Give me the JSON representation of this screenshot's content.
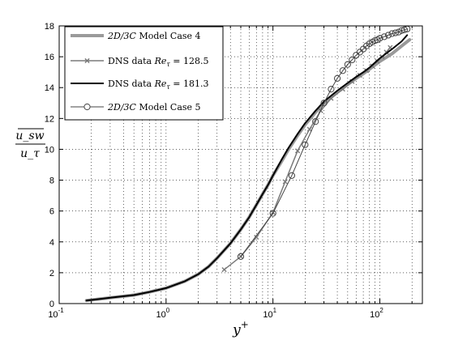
{
  "chart_data": {
    "type": "line",
    "xscale": "log",
    "xlim": [
      0.1,
      250
    ],
    "ylim": [
      0,
      18
    ],
    "grid": true,
    "legend_position": "top-left",
    "xlabel": "y",
    "xlabel_sup": "+",
    "ylabel_num": "u_sw",
    "ylabel_den": "u_τ",
    "x_ticks": [
      {
        "base": "10",
        "exp": "-1",
        "value": 0.1
      },
      {
        "base": "10",
        "exp": "0",
        "value": 1
      },
      {
        "base": "10",
        "exp": "1",
        "value": 10
      },
      {
        "base": "10",
        "exp": "2",
        "value": 100
      }
    ],
    "y_ticks": [
      0,
      2,
      4,
      6,
      8,
      10,
      12,
      14,
      16,
      18
    ],
    "series": [
      {
        "name": "2D/3C Model Case 4",
        "color": "#9a9a9a",
        "width": 4,
        "marker": "none",
        "x": [
          0.18,
          0.3,
          0.5,
          0.7,
          1,
          1.5,
          2,
          2.5,
          3,
          4,
          5,
          6,
          7,
          8,
          9,
          10,
          12,
          14,
          17,
          20,
          25,
          30,
          40,
          50,
          60,
          70,
          80,
          100,
          130,
          160,
          190
        ],
        "y": [
          0.2,
          0.38,
          0.55,
          0.75,
          1.0,
          1.45,
          1.9,
          2.4,
          2.95,
          3.9,
          4.8,
          5.6,
          6.4,
          7.1,
          7.7,
          8.3,
          9.2,
          10.0,
          10.9,
          11.6,
          12.4,
          13.0,
          13.7,
          14.2,
          14.6,
          14.9,
          15.2,
          15.7,
          16.2,
          16.7,
          17.1
        ]
      },
      {
        "name": "DNS data Re_τ = 128.5",
        "color": "#7a7a7a",
        "width": 1.5,
        "marker": "x",
        "x": [
          3.5,
          5,
          7,
          10,
          13,
          17,
          22,
          28,
          35,
          45,
          55,
          65,
          75,
          85,
          95,
          105,
          115,
          125
        ],
        "y": [
          2.2,
          3.05,
          4.3,
          5.9,
          7.9,
          9.9,
          11.3,
          12.5,
          13.3,
          13.9,
          14.4,
          14.8,
          15.1,
          15.4,
          15.7,
          16.0,
          16.3,
          16.6
        ]
      },
      {
        "name": "DNS data Re_τ = 181.3",
        "color": "#000000",
        "width": 2,
        "marker": "none",
        "x": [
          0.18,
          0.3,
          0.5,
          0.7,
          1,
          1.5,
          2,
          2.5,
          3,
          4,
          5,
          6,
          7,
          8,
          9,
          10,
          12,
          14,
          17,
          20,
          25,
          30,
          40,
          50,
          60,
          70,
          80,
          100,
          130,
          160,
          180
        ],
        "y": [
          0.2,
          0.38,
          0.55,
          0.75,
          1.0,
          1.45,
          1.9,
          2.4,
          2.95,
          3.9,
          4.8,
          5.6,
          6.4,
          7.1,
          7.7,
          8.3,
          9.3,
          10.1,
          11.0,
          11.7,
          12.5,
          13.1,
          13.8,
          14.3,
          14.7,
          15.0,
          15.3,
          15.9,
          16.5,
          17.0,
          17.4
        ]
      },
      {
        "name": "2D/3C Model Case 5",
        "color": "#444444",
        "width": 1,
        "marker": "circle",
        "x": [
          5,
          10,
          15,
          20,
          25,
          30,
          35,
          40,
          45,
          50,
          55,
          60,
          65,
          70,
          75,
          80,
          85,
          90,
          95,
          100,
          110,
          120,
          130,
          140,
          150,
          160,
          170,
          180
        ],
        "y": [
          3.05,
          5.85,
          8.3,
          10.3,
          11.8,
          13.0,
          13.9,
          14.6,
          15.1,
          15.5,
          15.8,
          16.1,
          16.3,
          16.5,
          16.7,
          16.85,
          16.95,
          17.05,
          17.1,
          17.2,
          17.3,
          17.4,
          17.5,
          17.55,
          17.6,
          17.7,
          17.75,
          17.8
        ]
      }
    ]
  },
  "legend": {
    "entries": [
      {
        "pre": "",
        "math": "2D/3C",
        "post": " Model Case 4"
      },
      {
        "pre": "DNS data ",
        "math": "Re",
        "sub": "τ",
        "post": " = 128.5"
      },
      {
        "pre": "DNS data ",
        "math": "Re",
        "sub": "τ",
        "post": " = 181.3"
      },
      {
        "pre": "",
        "math": "2D/3C",
        "post": " Model Case 5"
      }
    ]
  }
}
